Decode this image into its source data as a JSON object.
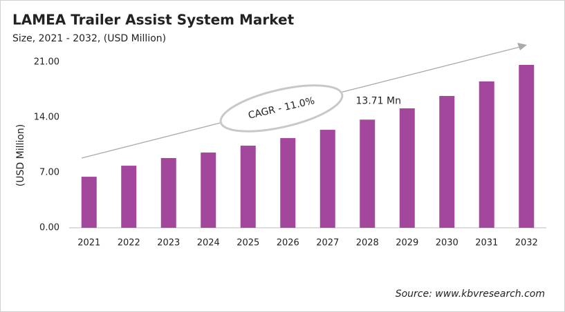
{
  "chart_data": {
    "type": "bar",
    "title": "LAMEA Trailer Assist System Market",
    "subtitle": "Size, 2021 - 2032, (USD Million)",
    "y_label": "(USD Million)",
    "categories": [
      "2021",
      "2022",
      "2023",
      "2024",
      "2025",
      "2026",
      "2027",
      "2028",
      "2029",
      "2030",
      "2031",
      "2032"
    ],
    "values": [
      6.47,
      7.87,
      8.84,
      9.54,
      10.41,
      11.37,
      12.42,
      13.71,
      15.14,
      16.71,
      18.55,
      20.65
    ],
    "value_labels": [
      null,
      null,
      null,
      null,
      null,
      null,
      null,
      "13.71 Mn",
      null,
      null,
      null,
      null
    ],
    "color": "#a3479d",
    "ylim": [
      0,
      21
    ],
    "yticks": [
      {
        "value": 0,
        "label": "0.00"
      },
      {
        "value": 7,
        "label": "7.00"
      },
      {
        "value": 14,
        "label": "14.00"
      },
      {
        "value": 21,
        "label": "21.00"
      }
    ],
    "grid": false,
    "annotations": [
      "CAGR - 11.0%"
    ],
    "source": "Source: www.kbvresearch.com"
  }
}
